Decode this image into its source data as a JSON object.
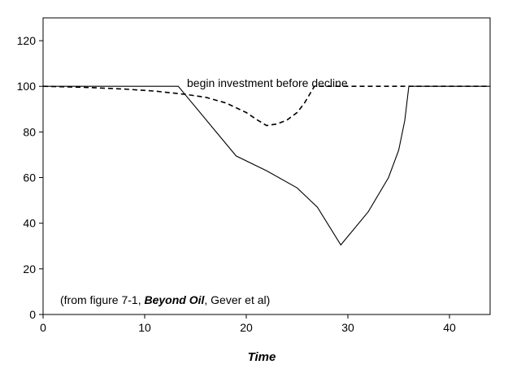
{
  "chart_data": {
    "type": "line",
    "title": "",
    "xlabel": "Time",
    "ylabel": "",
    "xlim": [
      0,
      44
    ],
    "ylim": [
      0,
      130
    ],
    "x_ticks": [
      0,
      10,
      20,
      30,
      40
    ],
    "y_ticks": [
      0,
      20,
      40,
      60,
      80,
      100,
      120
    ],
    "grid": false,
    "legend": "none",
    "series": [
      {
        "style": "dashed",
        "color": "#000000",
        "points": [
          [
            0,
            100
          ],
          [
            4,
            99.6
          ],
          [
            8,
            98.8
          ],
          [
            11,
            97.9
          ],
          [
            14,
            96.5
          ],
          [
            16,
            95.2
          ],
          [
            18,
            92.7
          ],
          [
            20,
            88.5
          ],
          [
            21,
            85.5
          ],
          [
            22,
            82.8
          ],
          [
            23,
            83.5
          ],
          [
            24,
            85.2
          ],
          [
            25,
            88.5
          ],
          [
            25.7,
            92.5
          ],
          [
            26.3,
            97.0
          ],
          [
            26.7,
            100
          ],
          [
            30,
            100
          ],
          [
            36,
            100
          ],
          [
            44,
            100
          ]
        ]
      },
      {
        "style": "solid",
        "color": "#000000",
        "points": [
          [
            0,
            100
          ],
          [
            5,
            100
          ],
          [
            10,
            100
          ],
          [
            13.3,
            100
          ],
          [
            19,
            69.5
          ],
          [
            22,
            63
          ],
          [
            25,
            55.5
          ],
          [
            27,
            47
          ],
          [
            29.3,
            30.5
          ],
          [
            32,
            45
          ],
          [
            34,
            60
          ],
          [
            35,
            72
          ],
          [
            35.6,
            85
          ],
          [
            36,
            100
          ],
          [
            40,
            100
          ],
          [
            44,
            100
          ]
        ]
      }
    ],
    "annotations": {
      "top": "begin investment before decline",
      "source_prefix": "(from figure 7-1, ",
      "source_title": "Beyond Oil",
      "source_suffix": ", Gever et al)"
    }
  }
}
